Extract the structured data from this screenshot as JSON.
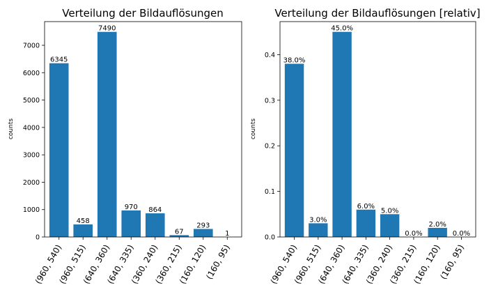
{
  "chart_data": [
    {
      "type": "bar",
      "title": "Verteilung der Bildauflösungen",
      "xlabel": "",
      "ylabel": "counts",
      "categories": [
        "(960, 540)",
        "(960, 515)",
        "(640, 360)",
        "(640, 335)",
        "(360, 240)",
        "(360, 215)",
        "(160, 120)",
        "(160, 95)"
      ],
      "values": [
        6345,
        458,
        7490,
        970,
        864,
        67,
        293,
        1
      ],
      "data_labels": [
        "6345",
        "458",
        "7490",
        "970",
        "864",
        "67",
        "293",
        "1"
      ],
      "yticks": [
        0,
        1000,
        2000,
        3000,
        4000,
        5000,
        6000,
        7000
      ],
      "ytick_labels": [
        "0",
        "1000",
        "2000",
        "3000",
        "4000",
        "5000",
        "6000",
        "7000"
      ],
      "ylim": [
        0,
        7865
      ],
      "grid": false,
      "color": "#1f77b4"
    },
    {
      "type": "bar",
      "title": "Verteilung der Bildauflösungen [relativ]",
      "xlabel": "",
      "ylabel": "counts",
      "categories": [
        "(960, 540)",
        "(960, 515)",
        "(640, 360)",
        "(640, 335)",
        "(360, 240)",
        "(360, 215)",
        "(160, 120)",
        "(160, 95)"
      ],
      "values": [
        0.38,
        0.03,
        0.45,
        0.06,
        0.05,
        0.0,
        0.02,
        0.0
      ],
      "data_labels": [
        "38.0%",
        "3.0%",
        "45.0%",
        "6.0%",
        "5.0%",
        "0.0%",
        "2.0%",
        "0.0%"
      ],
      "yticks": [
        0,
        0.1,
        0.2,
        0.3,
        0.4
      ],
      "ytick_labels": [
        "0.0",
        "0.1",
        "0.2",
        "0.3",
        "0.4"
      ],
      "ylim": [
        0,
        0.4725
      ],
      "grid": false,
      "color": "#1f77b4"
    }
  ]
}
